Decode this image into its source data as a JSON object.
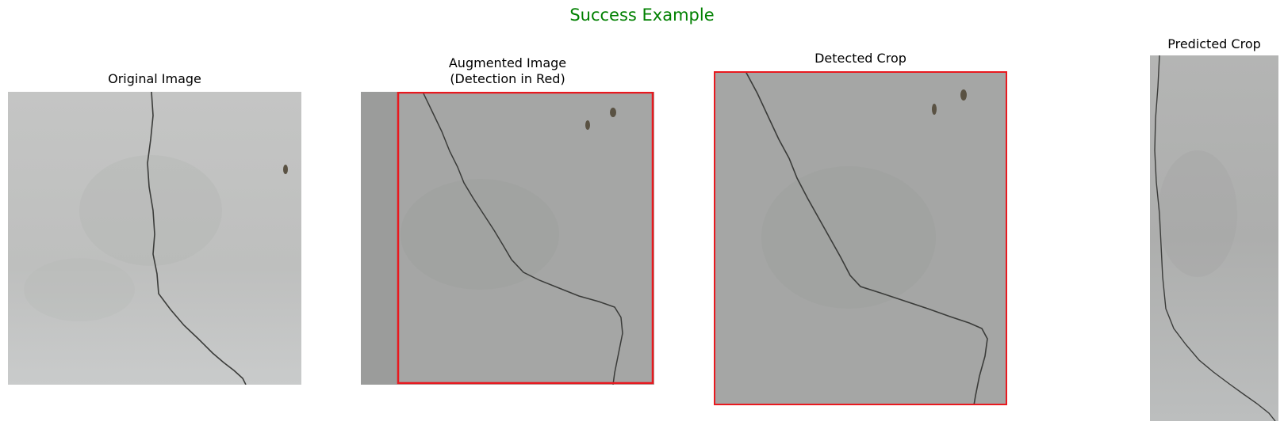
{
  "figure": {
    "suptitle": "Success Example",
    "suptitle_color": "#008000",
    "detection_color": "#e8191f"
  },
  "panels": [
    {
      "title": "Original Image"
    },
    {
      "title_line1": "Augmented Image",
      "title_line2": "(Detection in Red)"
    },
    {
      "title": "Detected Crop"
    },
    {
      "title": "Predicted Crop"
    }
  ],
  "icons": {
    "panel_image": "concrete-crack-photo"
  }
}
